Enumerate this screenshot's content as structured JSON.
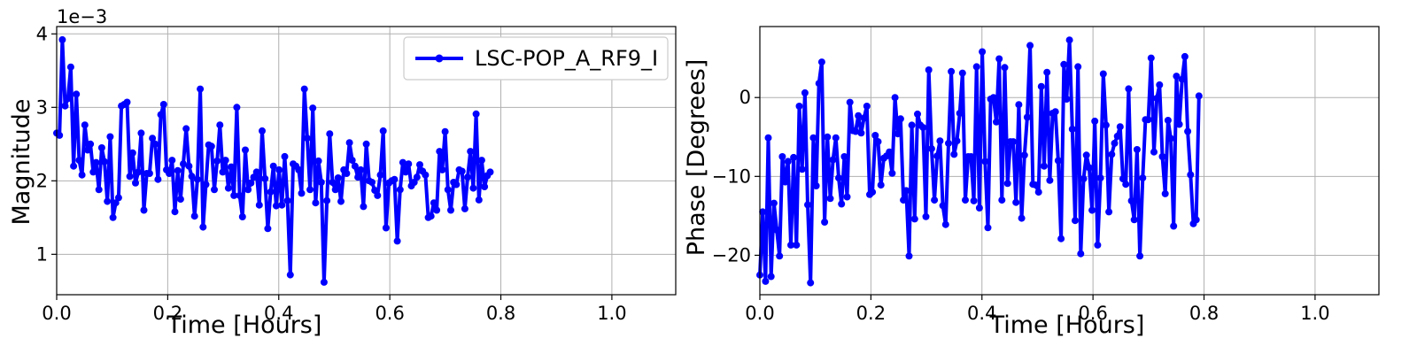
{
  "chart_data": [
    {
      "type": "line",
      "xlabel": "Time [Hours]",
      "ylabel": "Magnitude",
      "y_offset_label": "1e−3",
      "xlim": [
        0,
        1.115
      ],
      "ylim": [
        0.45,
        4.1
      ],
      "xticks": [
        0.0,
        0.2,
        0.4,
        0.6,
        0.8,
        1.0
      ],
      "xtick_labels": [
        "0.0",
        "0.2",
        "0.4",
        "0.6",
        "0.8",
        "1.0"
      ],
      "yticks": [
        1,
        2,
        3,
        4
      ],
      "ytick_labels": [
        "1",
        "2",
        "3",
        "4"
      ],
      "grid": true,
      "legend": {
        "location": "upper right",
        "entries": [
          "LSC-POP_A_RF9_I"
        ]
      },
      "series": [
        {
          "name": "LSC-POP_A_RF9_I",
          "color": "#0000ff",
          "marker": "circle",
          "x_start": 0.0,
          "x_step": 0.00507,
          "values": [
            2.65,
            2.62,
            3.92,
            3.02,
            3.12,
            3.55,
            2.2,
            3.18,
            2.28,
            2.08,
            2.76,
            2.42,
            2.5,
            2.12,
            2.25,
            1.88,
            2.45,
            2.26,
            1.72,
            2.6,
            1.5,
            1.7,
            1.77,
            3.02,
            3.04,
            3.07,
            2.06,
            2.38,
            1.97,
            2.12,
            2.65,
            1.6,
            2.1,
            2.1,
            2.58,
            2.5,
            2.02,
            2.9,
            3.04,
            2.15,
            2.1,
            2.28,
            1.58,
            2.14,
            1.75,
            2.23,
            2.71,
            2.2,
            2.06,
            1.52,
            2.02,
            3.25,
            1.37,
            1.95,
            2.49,
            2.47,
            1.88,
            2.27,
            2.76,
            2.12,
            2.28,
            1.9,
            2.19,
            1.8,
            3.0,
            1.8,
            1.51,
            2.42,
            1.88,
            1.97,
            2.05,
            2.12,
            1.67,
            2.68,
            2.03,
            1.35,
            1.85,
            2.2,
            1.66,
            2.15,
            1.67,
            2.33,
            1.73,
            0.72,
            2.23,
            2.2,
            2.15,
            1.83,
            3.25,
            2.58,
            1.88,
            2.99,
            1.7,
            2.27,
            1.98,
            0.62,
            1.73,
            2.64,
            1.98,
            1.88,
            2.04,
            1.72,
            2.15,
            2.1,
            2.52,
            2.28,
            2.2,
            2.05,
            2.15,
            1.65,
            2.5,
            2.0,
            1.98,
            1.87,
            1.8,
            2.08,
            2.68,
            1.36,
            1.97,
            2.0,
            2.02,
            1.18,
            1.88,
            2.25,
            2.12,
            2.23,
            1.93,
            1.98,
            2.05,
            2.22,
            2.13,
            2.08,
            1.5,
            1.52,
            1.7,
            1.6,
            2.4,
            2.15,
            2.67,
            1.88,
            1.6,
            1.98,
            1.95,
            2.15,
            2.13,
            1.62,
            2.05,
            2.4,
            1.9,
            2.91,
            1.74,
            2.28,
            1.92,
            2.07,
            2.12
          ]
        }
      ]
    },
    {
      "type": "line",
      "xlabel": "Time [Hours]",
      "ylabel": "Phase [Degrees]",
      "xlim": [
        0,
        1.115
      ],
      "ylim": [
        -25,
        9
      ],
      "xticks": [
        0.0,
        0.2,
        0.4,
        0.6,
        0.8,
        1.0
      ],
      "xtick_labels": [
        "0.0",
        "0.2",
        "0.4",
        "0.6",
        "0.8",
        "1.0"
      ],
      "yticks": [
        0,
        -10,
        -20
      ],
      "ytick_labels": [
        "0",
        "−10",
        "−20"
      ],
      "grid": true,
      "series": [
        {
          "color": "#0000ff",
          "marker": "circle",
          "x_start": 0.0,
          "x_step": 0.00507,
          "values": [
            -22.5,
            -14.5,
            -23.3,
            -5.1,
            -22.7,
            -13.4,
            -16.8,
            -20.1,
            -7.5,
            -10.7,
            -8.1,
            -18.7,
            -7.6,
            -18.7,
            -1.1,
            -9.1,
            0.6,
            -13.6,
            -23.5,
            -5.1,
            -11.2,
            1.8,
            4.5,
            -15.8,
            -5.0,
            -12.8,
            -7.9,
            -5.1,
            -10.2,
            -13.5,
            -7.5,
            -12.6,
            -0.6,
            -4.2,
            -4.3,
            -2.3,
            -4.5,
            -2.6,
            -1.1,
            -12.3,
            -12.0,
            -4.8,
            -5.6,
            -11.1,
            -7.7,
            -7.4,
            -6.9,
            -9.6,
            0.0,
            -4.6,
            -2.7,
            -13.0,
            -11.8,
            -20.1,
            -3.5,
            -15.4,
            -2.1,
            -3.5,
            -3.8,
            -15.1,
            3.5,
            -6.5,
            -13.0,
            -7.4,
            -5.5,
            -13.7,
            -16.1,
            -5.8,
            3.3,
            -7.2,
            -5.5,
            -2.0,
            3.1,
            -13.0,
            -7.5,
            -7.5,
            -13.1,
            3.9,
            -14.0,
            5.8,
            -8.1,
            -16.5,
            -0.2,
            0.0,
            -3.1,
            4.9,
            -13.0,
            3.8,
            -10.9,
            -5.6,
            -5.6,
            -13.3,
            -0.9,
            -15.3,
            -7.3,
            -2.5,
            6.6,
            -11.0,
            -11.1,
            -12.0,
            1.4,
            -8.7,
            3.2,
            -10.5,
            -2.0,
            -1.8,
            -8.0,
            -17.9,
            4.2,
            -0.2,
            7.3,
            -4.0,
            -15.6,
            3.9,
            -19.8,
            -10.3,
            -7.3,
            -8.9,
            -14.3,
            -3.0,
            -18.7,
            -10.2,
            3.0,
            -3.5,
            -14.5,
            -7.2,
            -5.8,
            -4.9,
            -3.7,
            -10.3,
            -11.0,
            1.1,
            -13.1,
            -15.5,
            -6.6,
            -20.1,
            -10.2,
            -2.8,
            -2.8,
            5.0,
            -6.9,
            -0.1,
            1.6,
            -7.5,
            -12.2,
            -2.9,
            -5.2,
            -16.3,
            2.7,
            -3.4,
            2.3,
            5.2,
            -4.3,
            -9.8,
            -16.0,
            -15.5,
            0.2
          ]
        }
      ]
    }
  ]
}
